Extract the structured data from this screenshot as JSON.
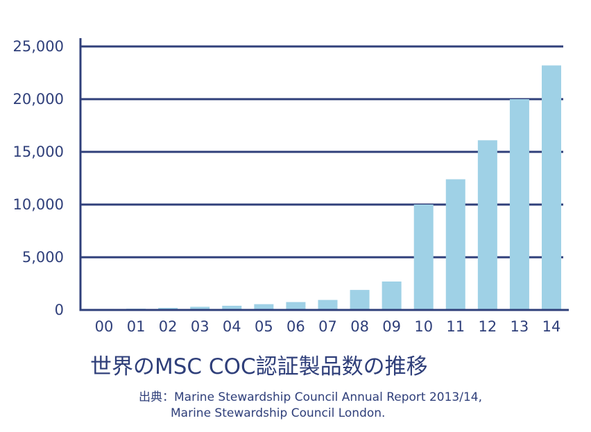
{
  "chart_data": {
    "type": "bar",
    "categories": [
      "00",
      "01",
      "02",
      "03",
      "04",
      "05",
      "06",
      "07",
      "08",
      "09",
      "10",
      "11",
      "12",
      "13",
      "14"
    ],
    "values": [
      100,
      120,
      200,
      300,
      400,
      550,
      750,
      950,
      1900,
      2700,
      10000,
      12400,
      16100,
      20000,
      23200
    ],
    "yticks": [
      "0",
      "5,000",
      "10,000",
      "15,000",
      "20,000",
      "25,000"
    ],
    "ylim": [
      0,
      25000
    ],
    "grid": true,
    "bar_color": "#9fd1e6",
    "axis_color": "#2f3f7a"
  },
  "title": "世界のMSC COC認証製品数の推移",
  "source": {
    "line1": "出典：Marine Stewardship Council Annual Report 2013/14,",
    "line2": "Marine Stewardship Council London."
  }
}
